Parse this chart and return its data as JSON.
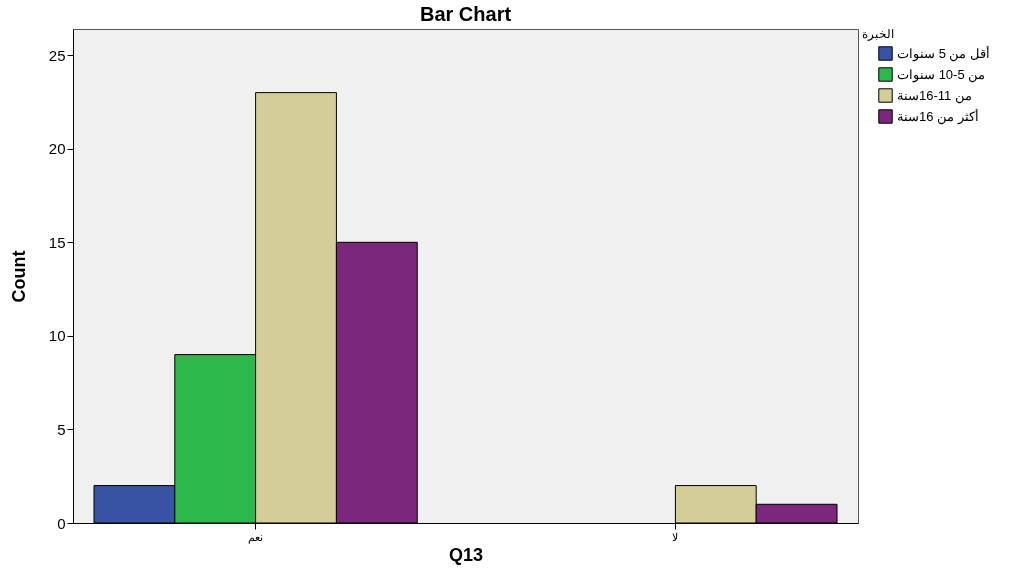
{
  "chart_data": {
    "type": "bar",
    "title": "Bar Chart",
    "xlabel": "Q13",
    "ylabel": "Count",
    "legend_title": "الخبرة",
    "categories": [
      "نعم",
      "لا"
    ],
    "series": [
      {
        "name": "أقل من 5 سنوات",
        "color": "#3953a4",
        "values": [
          2,
          null
        ]
      },
      {
        "name": "من 5-10 سنوات",
        "color": "#2db84b",
        "values": [
          9,
          null
        ]
      },
      {
        "name": "من 11-16سنة",
        "color": "#d3ce97",
        "values": [
          23,
          2
        ]
      },
      {
        "name": "أكثر من 16سنة",
        "color": "#7b277b",
        "values": [
          15,
          1
        ]
      }
    ],
    "ylim": [
      0,
      26.4
    ],
    "yticks": [
      0,
      5,
      10,
      15,
      20,
      25
    ],
    "grid": false,
    "legend": "top right"
  }
}
